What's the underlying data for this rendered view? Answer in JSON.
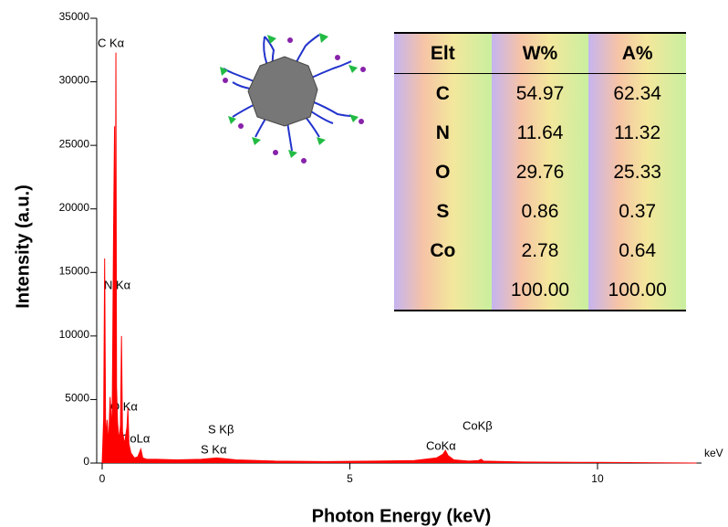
{
  "chart_data": {
    "type": "area",
    "color": "#ff0000",
    "x_label": "Photon Energy (keV)",
    "y_label": "Intensity (a.u.)",
    "x_unit": "keV",
    "xlim": [
      0,
      12.1
    ],
    "xticks": [
      0,
      5,
      10
    ],
    "ylim": [
      0,
      35000
    ],
    "yticks": [
      0,
      5000,
      10000,
      15000,
      20000,
      25000,
      30000,
      35000
    ],
    "x": [
      0,
      0.03,
      0.05,
      0.07,
      0.1,
      0.13,
      0.16,
      0.2,
      0.23,
      0.25,
      0.26,
      0.277,
      0.29,
      0.31,
      0.34,
      0.37,
      0.39,
      0.41,
      0.45,
      0.5,
      0.52,
      0.54,
      0.58,
      0.65,
      0.72,
      0.78,
      0.82,
      0.9,
      1.1,
      1.5,
      2.0,
      2.31,
      2.46,
      2.7,
      3.5,
      4.5,
      5.5,
      6.3,
      6.75,
      6.88,
      6.93,
      6.98,
      7.1,
      7.4,
      7.6,
      7.65,
      7.7,
      8.5,
      10,
      12
    ],
    "values": [
      0,
      3500,
      16100,
      2000,
      3400,
      1500,
      5200,
      2500,
      18300,
      26500,
      4000,
      32300,
      6000,
      3200,
      1800,
      3000,
      10000,
      2500,
      1500,
      2800,
      4300,
      1500,
      800,
      400,
      500,
      1100,
      400,
      300,
      300,
      250,
      300,
      400,
      350,
      250,
      150,
      120,
      150,
      200,
      400,
      700,
      1000,
      600,
      250,
      150,
      200,
      300,
      150,
      80,
      50,
      0
    ],
    "annotations": [
      "C Kα",
      "N Kα",
      "O Kα",
      "CoLα",
      "S Kβ",
      "S Kα",
      "CoKα",
      "CoKβ"
    ]
  },
  "table": {
    "columns": [
      "Elt",
      "W%",
      "A%"
    ],
    "rows": [
      [
        "C",
        "54.97",
        "62.34"
      ],
      [
        "N",
        "11.64",
        "11.32"
      ],
      [
        "O",
        "29.76",
        "25.33"
      ],
      [
        "S",
        "0.86",
        "0.37"
      ],
      [
        "Co",
        "2.78",
        "0.64"
      ],
      [
        null,
        "100.00",
        "100.00"
      ]
    ]
  }
}
